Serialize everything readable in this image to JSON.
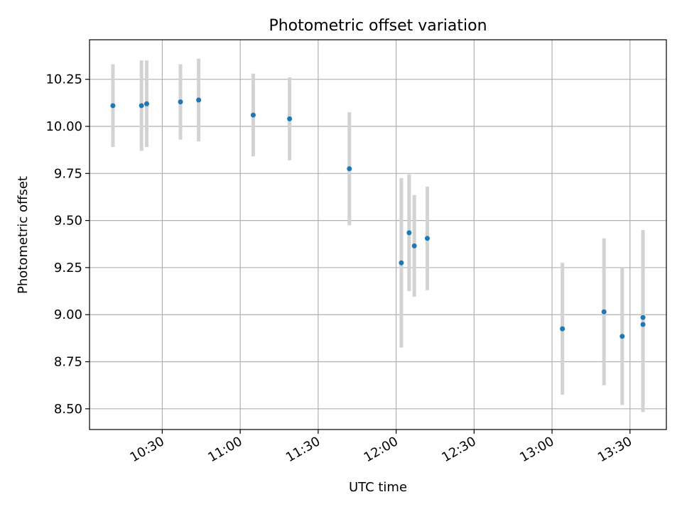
{
  "chart_data": {
    "type": "scatter",
    "title": "Photometric offset variation",
    "xlabel": "UTC time",
    "ylabel": "Photometric offset",
    "x_ticks": [
      "10:30",
      "11:00",
      "11:30",
      "12:00",
      "12:30",
      "13:00",
      "13:30"
    ],
    "y_ticks": [
      "8.50",
      "8.75",
      "9.00",
      "9.25",
      "9.50",
      "9.75",
      "10.00",
      "10.25"
    ],
    "xlim": [
      "10:02",
      "13:44"
    ],
    "ylim": [
      8.39,
      10.46
    ],
    "grid": true,
    "legend": "none",
    "series": [
      {
        "style": {
          "marker_color": "#1f77b4",
          "errorbar_color": "#d3d3d3"
        },
        "points": [
          {
            "x": "10:11",
            "y": 10.11,
            "yerr": 0.22
          },
          {
            "x": "10:22",
            "y": 10.11,
            "yerr": 0.24
          },
          {
            "x": "10:24",
            "y": 10.12,
            "yerr": 0.23
          },
          {
            "x": "10:37",
            "y": 10.13,
            "yerr": 0.2
          },
          {
            "x": "10:44",
            "y": 10.14,
            "yerr": 0.22
          },
          {
            "x": "11:05",
            "y": 10.06,
            "yerr": 0.22
          },
          {
            "x": "11:19",
            "y": 10.04,
            "yerr": 0.22
          },
          {
            "x": "11:42",
            "y": 9.775,
            "yerr": 0.3
          },
          {
            "x": "12:02",
            "y": 9.275,
            "yerr": 0.45
          },
          {
            "x": "12:05",
            "y": 9.435,
            "yerr": 0.31
          },
          {
            "x": "12:07",
            "y": 9.365,
            "yerr": 0.27
          },
          {
            "x": "12:12",
            "y": 9.405,
            "yerr": 0.275
          },
          {
            "x": "13:04",
            "y": 8.925,
            "yerr": 0.35
          },
          {
            "x": "13:20",
            "y": 9.015,
            "yerr": 0.39
          },
          {
            "x": "13:27",
            "y": 8.885,
            "yerr": 0.365
          },
          {
            "x": "13:35",
            "y": 8.985,
            "yerr": 0.465
          },
          {
            "x": "13:35",
            "y": 8.948,
            "yerr": 0.465
          }
        ]
      }
    ]
  }
}
